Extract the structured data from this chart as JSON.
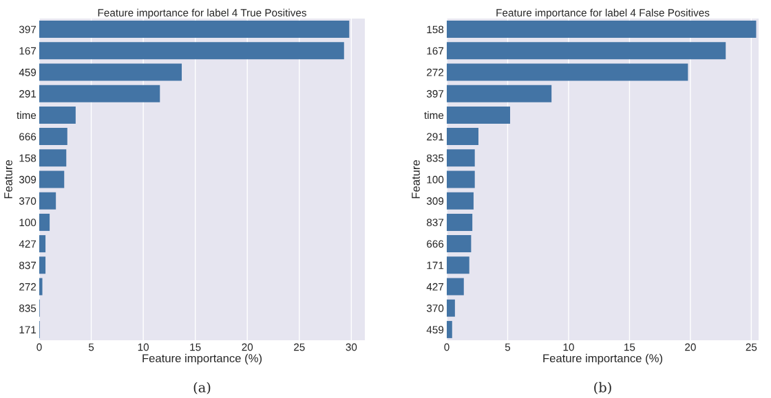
{
  "chart_data": [
    {
      "type": "bar",
      "orientation": "horizontal",
      "title": "Feature importance for label 4 True Positives",
      "xlabel": "Feature importance (%)",
      "ylabel": "Feature",
      "categories": [
        "397",
        "167",
        "459",
        "291",
        "time",
        "666",
        "158",
        "309",
        "370",
        "100",
        "427",
        "837",
        "272",
        "835",
        "171"
      ],
      "values": [
        29.8,
        29.3,
        13.7,
        11.6,
        3.5,
        2.7,
        2.6,
        2.4,
        1.6,
        1.0,
        0.6,
        0.6,
        0.3,
        0.05,
        0.05
      ],
      "color": "#4374a5",
      "xlim": [
        0,
        31.3
      ],
      "xticks": [
        0,
        5,
        10,
        15,
        20,
        25,
        30
      ],
      "grid": "x",
      "annotations": [
        "(a)"
      ]
    },
    {
      "type": "bar",
      "orientation": "horizontal",
      "title": "Feature importance for label 4 False Positives",
      "xlabel": "Feature importance (%)",
      "ylabel": "Feature",
      "categories": [
        "158",
        "167",
        "272",
        "397",
        "time",
        "291",
        "835",
        "100",
        "309",
        "837",
        "666",
        "171",
        "427",
        "370",
        "459"
      ],
      "values": [
        25.4,
        22.9,
        19.8,
        8.6,
        5.2,
        2.6,
        2.3,
        2.3,
        2.2,
        2.1,
        2.0,
        1.85,
        1.4,
        0.67,
        0.44
      ],
      "color": "#4374a5",
      "xlim": [
        0,
        25.6
      ],
      "xticks": [
        0,
        5,
        10,
        15,
        20,
        25
      ],
      "grid": "x",
      "annotations": [
        "(b)"
      ]
    }
  ]
}
